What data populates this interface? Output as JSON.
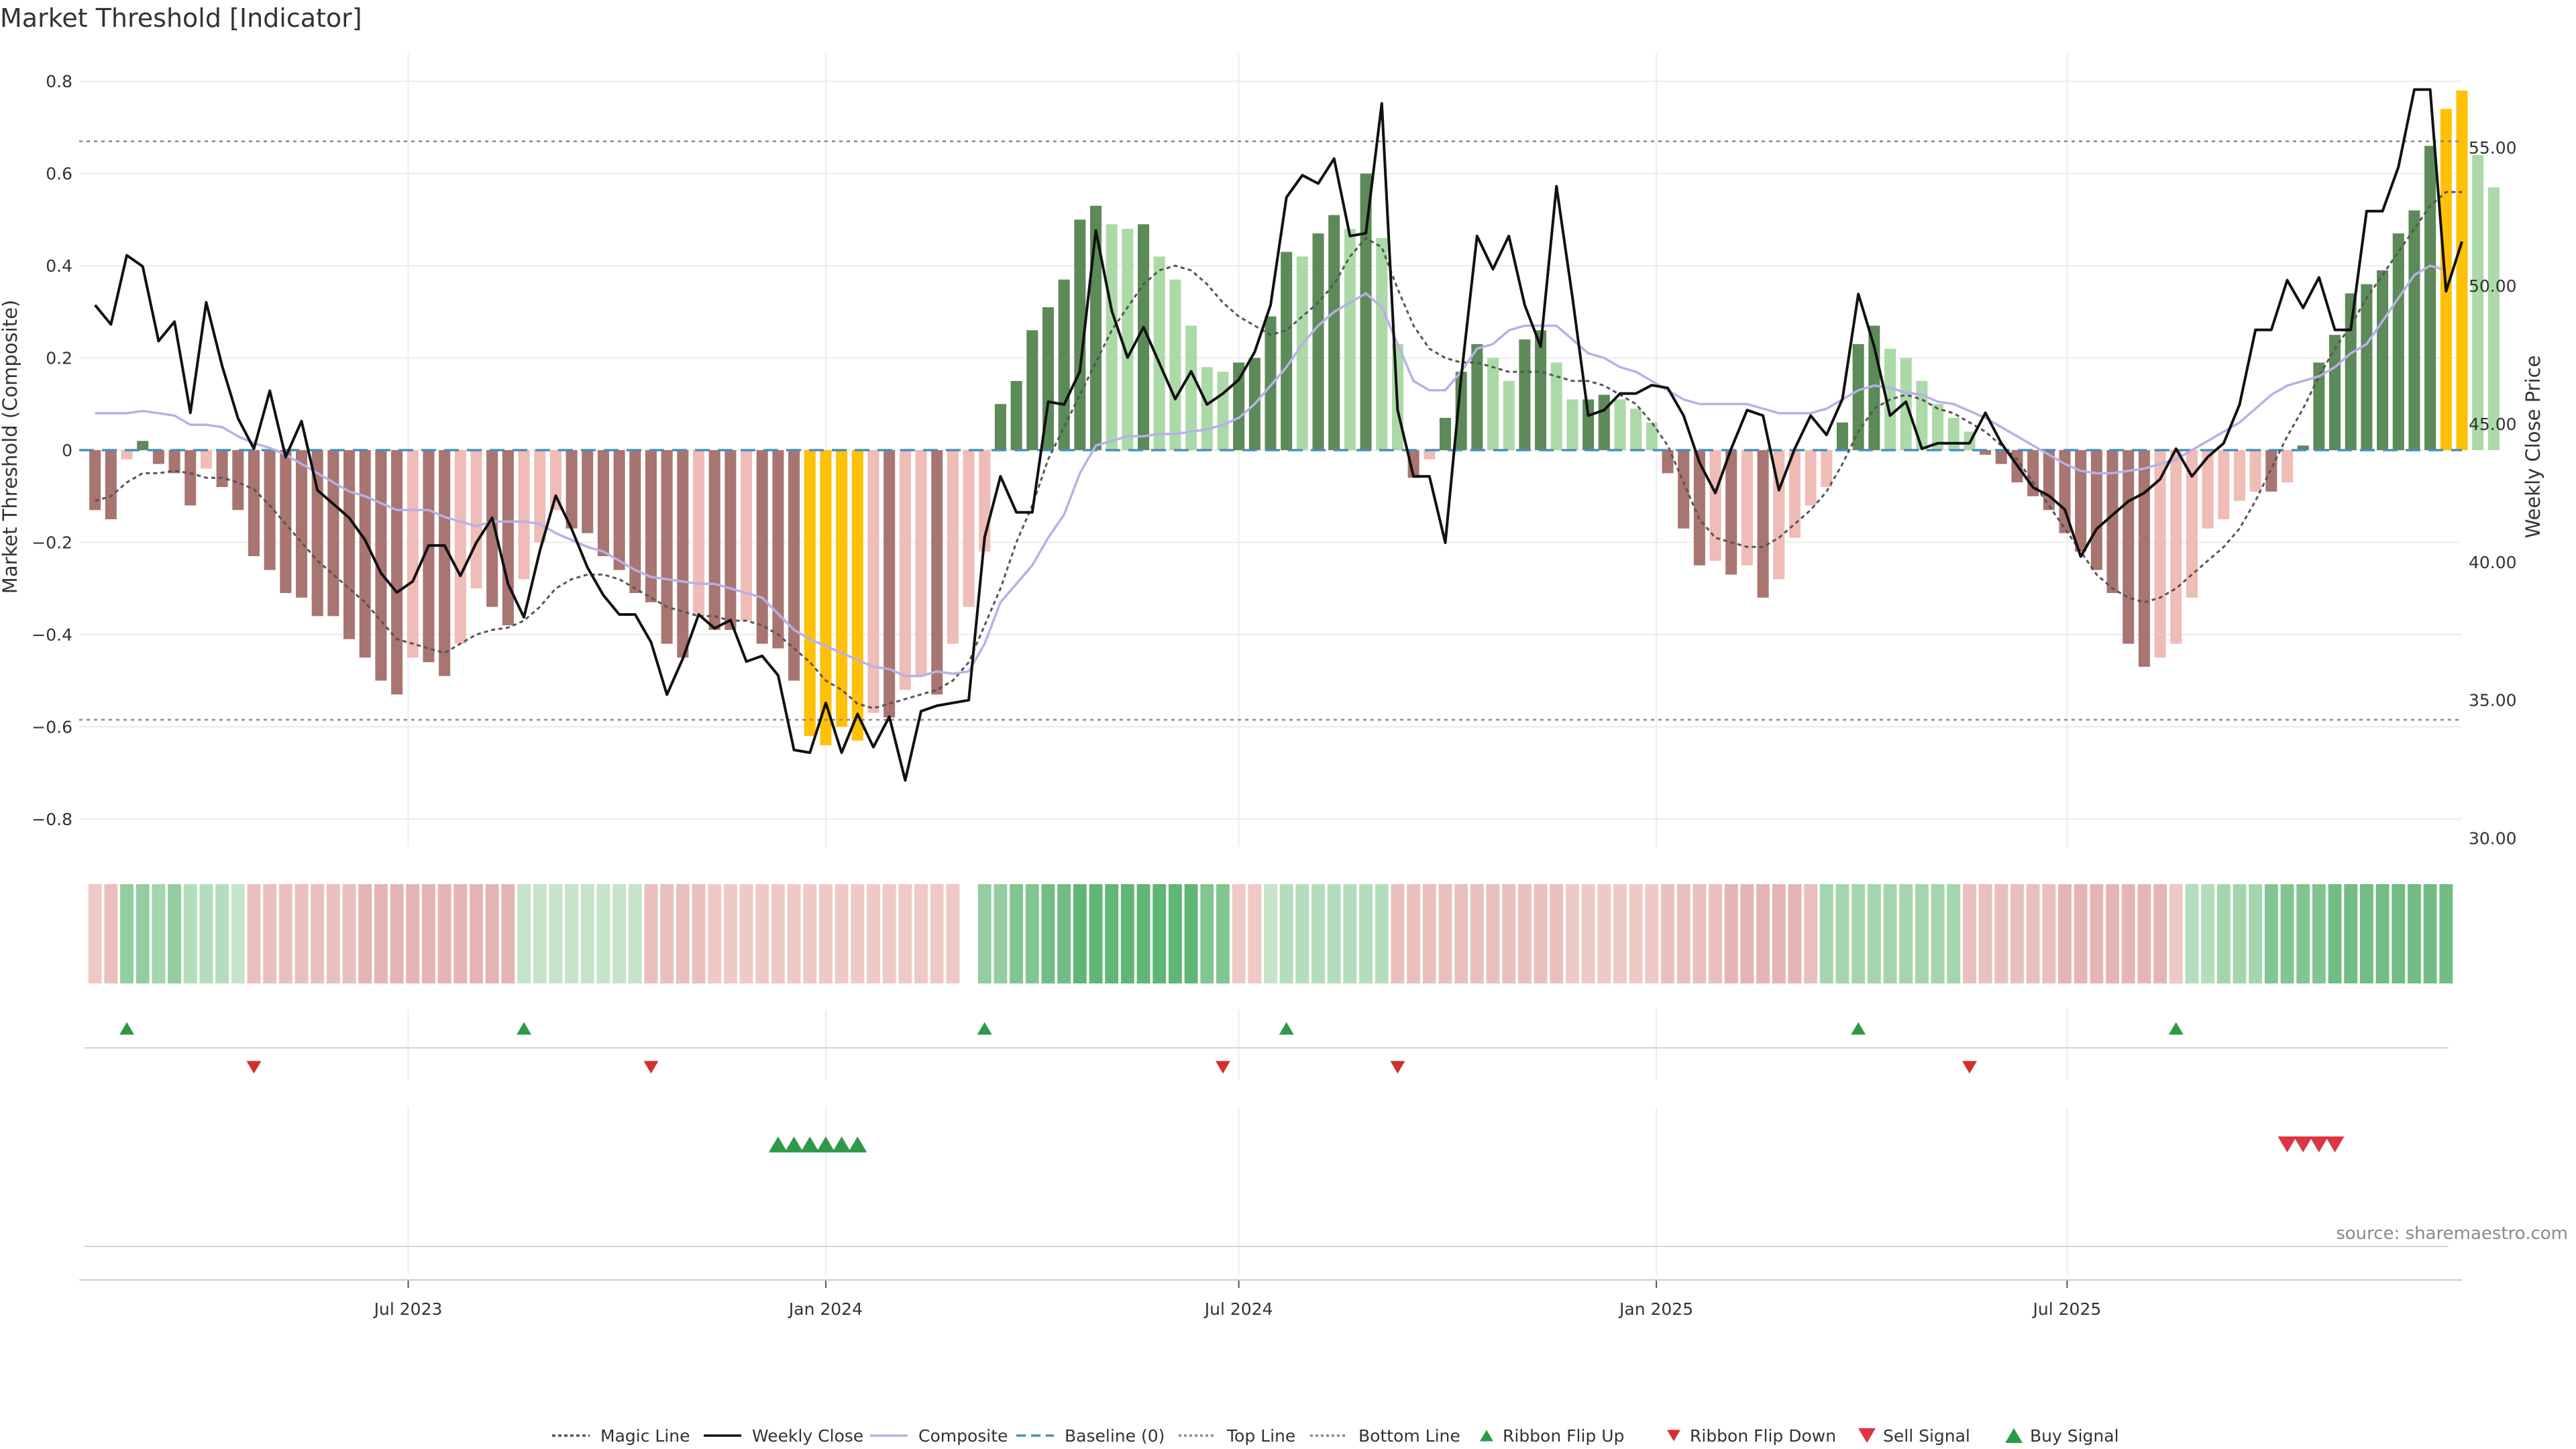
{
  "chart_data": {
    "type": "bar",
    "title": "Market Threshold [Indicator]",
    "ylabel_left": "Market Threshold (Composite)",
    "ylabel_right": "Weekly Close Price",
    "source": "source: sharemaestro.com",
    "x_ticks": [
      "Jul 2023",
      "Jan 2024",
      "Jul 2024",
      "Jan 2025",
      "Jul 2025"
    ],
    "x_range": [
      "2023-02-06",
      "2025-12-22"
    ],
    "weeks_start": "2023-02-13",
    "weeks_step_days": 7,
    "y_left": {
      "range": [
        -0.86,
        0.86
      ],
      "ticks": [
        -0.8,
        -0.6,
        -0.4,
        -0.2,
        0,
        0.2,
        0.4,
        0.6,
        0.8
      ],
      "tick_labels": [
        "−0.8",
        "−0.6",
        "−0.4",
        "−0.2",
        "0",
        "0.2",
        "0.4",
        "0.6",
        "0.8"
      ]
    },
    "y_right": {
      "range": [
        29.7,
        58.4
      ],
      "ticks": [
        30,
        35,
        40,
        45,
        50,
        55
      ],
      "tick_labels": [
        "30.00",
        "35.00",
        "40.00",
        "45.00",
        "50.00",
        "55.00"
      ]
    },
    "top_line": 0.67,
    "bottom_line": -0.585,
    "composite_bars": [
      -0.13,
      -0.15,
      -0.02,
      0.02,
      -0.03,
      -0.05,
      -0.12,
      -0.04,
      -0.08,
      -0.13,
      -0.23,
      -0.26,
      -0.31,
      -0.32,
      -0.36,
      -0.36,
      -0.41,
      -0.45,
      -0.5,
      -0.53,
      -0.45,
      -0.46,
      -0.49,
      -0.42,
      -0.3,
      -0.34,
      -0.38,
      -0.28,
      -0.2,
      -0.13,
      -0.17,
      -0.18,
      -0.23,
      -0.26,
      -0.31,
      -0.33,
      -0.42,
      -0.45,
      -0.36,
      -0.39,
      -0.39,
      -0.37,
      -0.42,
      -0.43,
      -0.5,
      -0.62,
      -0.64,
      -0.6,
      -0.63,
      -0.57,
      -0.58,
      -0.52,
      -0.49,
      -0.53,
      -0.42,
      -0.34,
      -0.22,
      0.1,
      0.15,
      0.26,
      0.31,
      0.37,
      0.5,
      0.53,
      0.49,
      0.48,
      0.49,
      0.42,
      0.37,
      0.27,
      0.18,
      0.17,
      0.19,
      0.2,
      0.29,
      0.43,
      0.42,
      0.47,
      0.51,
      0.48,
      0.6,
      0.46,
      0.23,
      -0.06,
      -0.02,
      0.07,
      0.17,
      0.23,
      0.2,
      0.15,
      0.24,
      0.26,
      0.19,
      0.11,
      0.11,
      0.12,
      0.11,
      0.09,
      0.06,
      -0.05,
      -0.17,
      -0.25,
      -0.24,
      -0.27,
      -0.25,
      -0.32,
      -0.28,
      -0.19,
      -0.12,
      -0.08,
      0.06,
      0.23,
      0.27,
      0.22,
      0.2,
      0.15,
      0.1,
      0.07,
      0.04,
      -0.01,
      -0.03,
      -0.07,
      -0.1,
      -0.13,
      -0.18,
      -0.22,
      -0.26,
      -0.31,
      -0.42,
      -0.47,
      -0.45,
      -0.42,
      -0.32,
      -0.17,
      -0.15,
      -0.11,
      -0.09,
      -0.09,
      -0.07,
      0.01,
      0.19,
      0.25,
      0.34,
      0.36,
      0.39,
      0.47,
      0.52,
      0.66,
      0.74,
      0.78,
      0.64,
      0.57
    ],
    "weekly_close": [
      49.3,
      48.6,
      51.1,
      50.7,
      48,
      48.7,
      45.4,
      49.4,
      47.1,
      45.2,
      44.1,
      46.2,
      43.8,
      45.1,
      42.6,
      42.1,
      41.6,
      40.8,
      39.6,
      38.9,
      39.3,
      40.6,
      40.6,
      39.5,
      40.7,
      41.6,
      39.2,
      38,
      40.4,
      42.4,
      41.2,
      39.8,
      38.8,
      38.1,
      38.1,
      37.1,
      35.2,
      36.5,
      38.1,
      37.6,
      37.9,
      36.4,
      36.6,
      35.9,
      33.2,
      33.1,
      34.9,
      33.1,
      34.5,
      33.3,
      34.4,
      32.1,
      34.6,
      34.8,
      34.9,
      35,
      40.9,
      43.1,
      41.8,
      41.8,
      45.8,
      45.7,
      46.9,
      52,
      49.1,
      47.4,
      48.5,
      47.2,
      45.9,
      46.9,
      45.7,
      46.1,
      46.6,
      47.6,
      49.3,
      53.2,
      54,
      53.7,
      54.6,
      51.8,
      51.9,
      56.6,
      45.5,
      43.1,
      43.1,
      40.7,
      46.7,
      51.8,
      50.6,
      51.8,
      49.3,
      47.8,
      53.6,
      49.6,
      45.3,
      45.5,
      46.1,
      46.1,
      46.4,
      46.3,
      45.3,
      43.6,
      42.5,
      44.1,
      45.5,
      45.3,
      42.6,
      44.1,
      45.3,
      44.6,
      45.9,
      49.7,
      47.8,
      45.3,
      45.8,
      44.1,
      44.3,
      44.3,
      44.3,
      45.4,
      44.3,
      43.5,
      42.7,
      42.4,
      41.9,
      40.2,
      41.2,
      41.7,
      42.2,
      42.5,
      43,
      44.1,
      43.1,
      43.8,
      44.3,
      45.7,
      48.4,
      48.4,
      50.2,
      49.2,
      50.3,
      48.4,
      48.4,
      52.7,
      52.7,
      54.3,
      57.1,
      57.1,
      49.8,
      51.6
    ],
    "composite_line": [
      0.08,
      0.08,
      0.08,
      0.085,
      0.08,
      0.075,
      0.055,
      0.055,
      0.05,
      0.03,
      0.015,
      0.005,
      -0.01,
      -0.03,
      -0.05,
      -0.07,
      -0.09,
      -0.1,
      -0.115,
      -0.13,
      -0.13,
      -0.13,
      -0.145,
      -0.155,
      -0.165,
      -0.155,
      -0.155,
      -0.155,
      -0.16,
      -0.18,
      -0.195,
      -0.21,
      -0.22,
      -0.24,
      -0.26,
      -0.275,
      -0.28,
      -0.285,
      -0.29,
      -0.29,
      -0.3,
      -0.31,
      -0.32,
      -0.355,
      -0.39,
      -0.41,
      -0.425,
      -0.44,
      -0.455,
      -0.47,
      -0.475,
      -0.49,
      -0.49,
      -0.48,
      -0.485,
      -0.48,
      -0.42,
      -0.33,
      -0.29,
      -0.25,
      -0.19,
      -0.14,
      -0.05,
      0.01,
      0.02,
      0.03,
      0.03,
      0.035,
      0.035,
      0.04,
      0.045,
      0.055,
      0.07,
      0.1,
      0.14,
      0.18,
      0.23,
      0.27,
      0.3,
      0.32,
      0.34,
      0.31,
      0.23,
      0.15,
      0.13,
      0.13,
      0.17,
      0.22,
      0.23,
      0.26,
      0.27,
      0.27,
      0.27,
      0.24,
      0.21,
      0.2,
      0.18,
      0.17,
      0.15,
      0.13,
      0.11,
      0.1,
      0.1,
      0.1,
      0.1,
      0.09,
      0.08,
      0.08,
      0.08,
      0.09,
      0.11,
      0.13,
      0.14,
      0.135,
      0.125,
      0.12,
      0.105,
      0.1,
      0.085,
      0.07,
      0.05,
      0.03,
      0.01,
      -0.01,
      -0.03,
      -0.045,
      -0.05,
      -0.05,
      -0.045,
      -0.04,
      -0.03,
      -0.02,
      0,
      0.02,
      0.04,
      0.06,
      0.09,
      0.12,
      0.14,
      0.15,
      0.16,
      0.18,
      0.21,
      0.23,
      0.28,
      0.33,
      0.38,
      0.4,
      0.39
    ],
    "magic_line": [
      -0.11,
      -0.1,
      -0.07,
      -0.05,
      -0.05,
      -0.045,
      -0.05,
      -0.06,
      -0.06,
      -0.07,
      -0.085,
      -0.12,
      -0.16,
      -0.2,
      -0.24,
      -0.27,
      -0.3,
      -0.33,
      -0.37,
      -0.41,
      -0.42,
      -0.43,
      -0.44,
      -0.42,
      -0.4,
      -0.39,
      -0.385,
      -0.37,
      -0.34,
      -0.3,
      -0.28,
      -0.27,
      -0.27,
      -0.28,
      -0.3,
      -0.32,
      -0.34,
      -0.35,
      -0.36,
      -0.36,
      -0.37,
      -0.37,
      -0.38,
      -0.4,
      -0.43,
      -0.46,
      -0.5,
      -0.52,
      -0.55,
      -0.56,
      -0.55,
      -0.54,
      -0.53,
      -0.52,
      -0.5,
      -0.46,
      -0.38,
      -0.3,
      -0.2,
      -0.12,
      -0.02,
      0.05,
      0.12,
      0.19,
      0.26,
      0.31,
      0.36,
      0.39,
      0.4,
      0.39,
      0.36,
      0.32,
      0.29,
      0.27,
      0.25,
      0.26,
      0.29,
      0.32,
      0.36,
      0.42,
      0.46,
      0.44,
      0.35,
      0.27,
      0.22,
      0.2,
      0.19,
      0.19,
      0.18,
      0.17,
      0.17,
      0.17,
      0.16,
      0.15,
      0.15,
      0.14,
      0.12,
      0.1,
      0.06,
      0.01,
      -0.07,
      -0.15,
      -0.19,
      -0.2,
      -0.21,
      -0.21,
      -0.19,
      -0.16,
      -0.13,
      -0.09,
      -0.03,
      0.04,
      0.09,
      0.11,
      0.12,
      0.11,
      0.09,
      0.08,
      0.06,
      0.04,
      0.01,
      -0.02,
      -0.07,
      -0.12,
      -0.17,
      -0.22,
      -0.27,
      -0.3,
      -0.32,
      -0.33,
      -0.32,
      -0.3,
      -0.27,
      -0.24,
      -0.21,
      -0.17,
      -0.11,
      -0.04,
      0.03,
      0.09,
      0.16,
      0.22,
      0.27,
      0.33,
      0.38,
      0.43,
      0.48,
      0.53,
      0.56,
      0.56
    ],
    "ribbon": [
      -0.2,
      -0.3,
      0.5,
      0.5,
      0.4,
      0.5,
      0.3,
      0.3,
      0.3,
      0.2,
      -0.3,
      -0.3,
      -0.3,
      -0.3,
      -0.3,
      -0.3,
      -0.3,
      -0.4,
      -0.4,
      -0.4,
      -0.4,
      -0.4,
      -0.4,
      -0.4,
      -0.4,
      -0.4,
      -0.4,
      0.2,
      0.2,
      0.2,
      0.2,
      0.2,
      0.2,
      0.2,
      0.2,
      -0.3,
      -0.3,
      -0.3,
      -0.3,
      -0.2,
      -0.2,
      -0.2,
      -0.2,
      -0.2,
      -0.2,
      -0.2,
      -0.2,
      -0.2,
      -0.2,
      -0.2,
      -0.2,
      -0.2,
      -0.2,
      -0.2,
      -0.2,
      null,
      0.5,
      0.5,
      0.6,
      0.6,
      0.7,
      0.7,
      0.8,
      0.8,
      0.8,
      0.8,
      0.8,
      0.8,
      0.8,
      0.8,
      0.6,
      0.6,
      -0.2,
      -0.2,
      0.2,
      0.3,
      0.3,
      0.3,
      0.3,
      0.3,
      0.3,
      0.3,
      -0.3,
      -0.3,
      -0.3,
      -0.3,
      -0.3,
      -0.3,
      -0.3,
      -0.3,
      -0.3,
      -0.3,
      -0.3,
      -0.2,
      -0.2,
      -0.2,
      -0.2,
      -0.2,
      -0.2,
      -0.3,
      -0.3,
      -0.3,
      -0.3,
      -0.4,
      -0.4,
      -0.4,
      -0.4,
      -0.4,
      -0.3,
      0.4,
      0.4,
      0.4,
      0.4,
      0.4,
      0.4,
      0.4,
      0.4,
      0.4,
      -0.3,
      -0.3,
      -0.3,
      -0.3,
      -0.3,
      -0.3,
      -0.4,
      -0.4,
      -0.4,
      -0.4,
      -0.4,
      -0.4,
      -0.4,
      -0.2,
      0.3,
      0.3,
      0.4,
      0.4,
      0.4,
      0.6,
      0.6,
      0.6,
      0.6,
      0.7,
      0.7,
      0.7,
      0.7,
      0.7,
      0.7,
      0.7,
      0.7
    ],
    "ribbon_flip_up": [
      2,
      27,
      56,
      75,
      111,
      131
    ],
    "ribbon_flip_down": [
      10,
      35,
      71,
      82,
      118
    ],
    "buy_signal": [
      43,
      44,
      45,
      46,
      47,
      48
    ],
    "sell_signal": [
      138,
      139,
      140,
      141
    ],
    "legend": [
      "Magic Line",
      "Weekly Close",
      "Composite",
      "Baseline (0)",
      "Top Line",
      "Bottom Line",
      "Ribbon Flip Up",
      "Ribbon Flip Down",
      "Sell Signal",
      "Buy Signal"
    ],
    "colors": {
      "bull_strong": "#5c8a58",
      "bull_weak": "#acd9a8",
      "bear_strong": "#a87570",
      "bear_weak": "#efbcb6",
      "extreme": "#ffc107",
      "close_line": "#111111",
      "composite_line": "#b8b0e6",
      "magic_line": "#555555",
      "baseline": "#4a90b8",
      "threshold_line": "#888888",
      "flip_up": "#2e9a47",
      "flip_down": "#d32f2f",
      "buy": "#2e9a47",
      "sell": "#dc3545"
    }
  }
}
